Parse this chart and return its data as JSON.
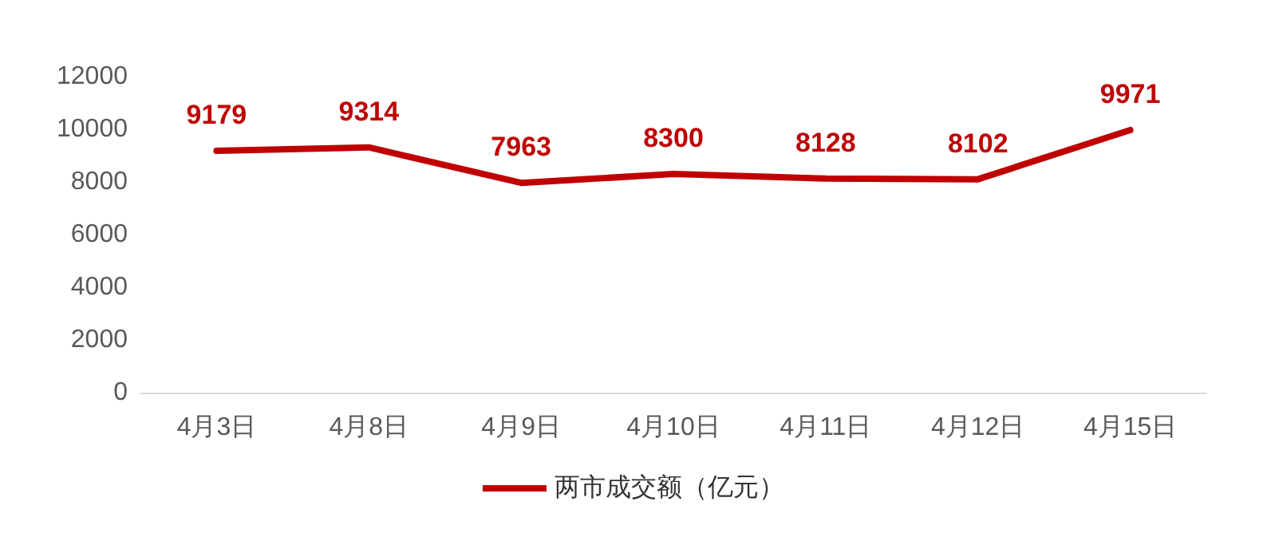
{
  "chart_data": {
    "type": "line",
    "categories": [
      "4月3日",
      "4月8日",
      "4月9日",
      "4月10日",
      "4月11日",
      "4月12日",
      "4月15日"
    ],
    "series": [
      {
        "name": "两市成交额（亿元）",
        "color": "#c00000",
        "values": [
          9179,
          9314,
          7963,
          8300,
          8128,
          8102,
          9971
        ]
      }
    ],
    "ylim": [
      0,
      12000
    ],
    "yticks": [
      0,
      2000,
      4000,
      6000,
      8000,
      10000,
      12000
    ],
    "grid": false,
    "legend": "bottom",
    "marker": "none",
    "line_style": "solid",
    "data_labels": true
  }
}
